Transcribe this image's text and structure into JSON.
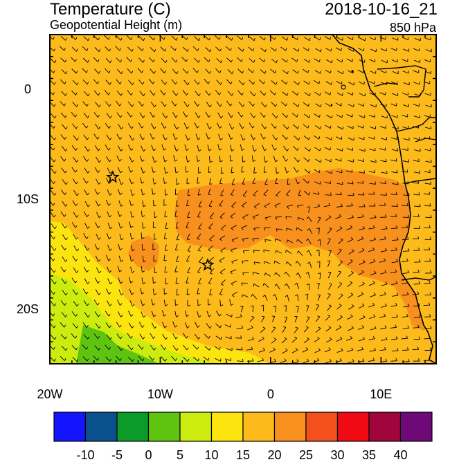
{
  "header": {
    "title": "Temperature (C)",
    "subtitle": "Geopotential Height (m)",
    "timestamp": "2018-10-16_21",
    "level": "850 hPa"
  },
  "map": {
    "x_ticks": [
      {
        "value": -20,
        "label": "20W"
      },
      {
        "value": -10,
        "label": "10W"
      },
      {
        "value": 0,
        "label": "0"
      },
      {
        "value": 10,
        "label": "10E"
      }
    ],
    "y_ticks": [
      {
        "value": 0,
        "label": "0"
      },
      {
        "value": -10,
        "label": "10S"
      },
      {
        "value": -20,
        "label": "20S"
      }
    ],
    "lon_range": [
      -20,
      15
    ],
    "lat_range": [
      -25,
      5
    ],
    "markers": [
      {
        "name": "star",
        "lon": -14.3,
        "lat": -8.0
      },
      {
        "name": "star",
        "lon": -5.7,
        "lat": -16.0
      }
    ],
    "field_colors": {
      "bg_20": "#fcbb1b",
      "c25": "#f8901d",
      "c15": "#fce50f",
      "c10": "#cceb0f",
      "c5": "#5ec40f",
      "land": "#fcbb1b",
      "hot": "#f4501d"
    }
  },
  "colorbar": {
    "colors": [
      "#1414ff",
      "#0a508c",
      "#0a9b28",
      "#5ec40f",
      "#cceb0f",
      "#fce50f",
      "#fcbb1b",
      "#f8901d",
      "#f4501d",
      "#ef0a14",
      "#a0053c",
      "#6e0a78"
    ],
    "labels": [
      "-10",
      "-5",
      "0",
      "5",
      "10",
      "15",
      "20",
      "25",
      "30",
      "35",
      "40"
    ]
  }
}
